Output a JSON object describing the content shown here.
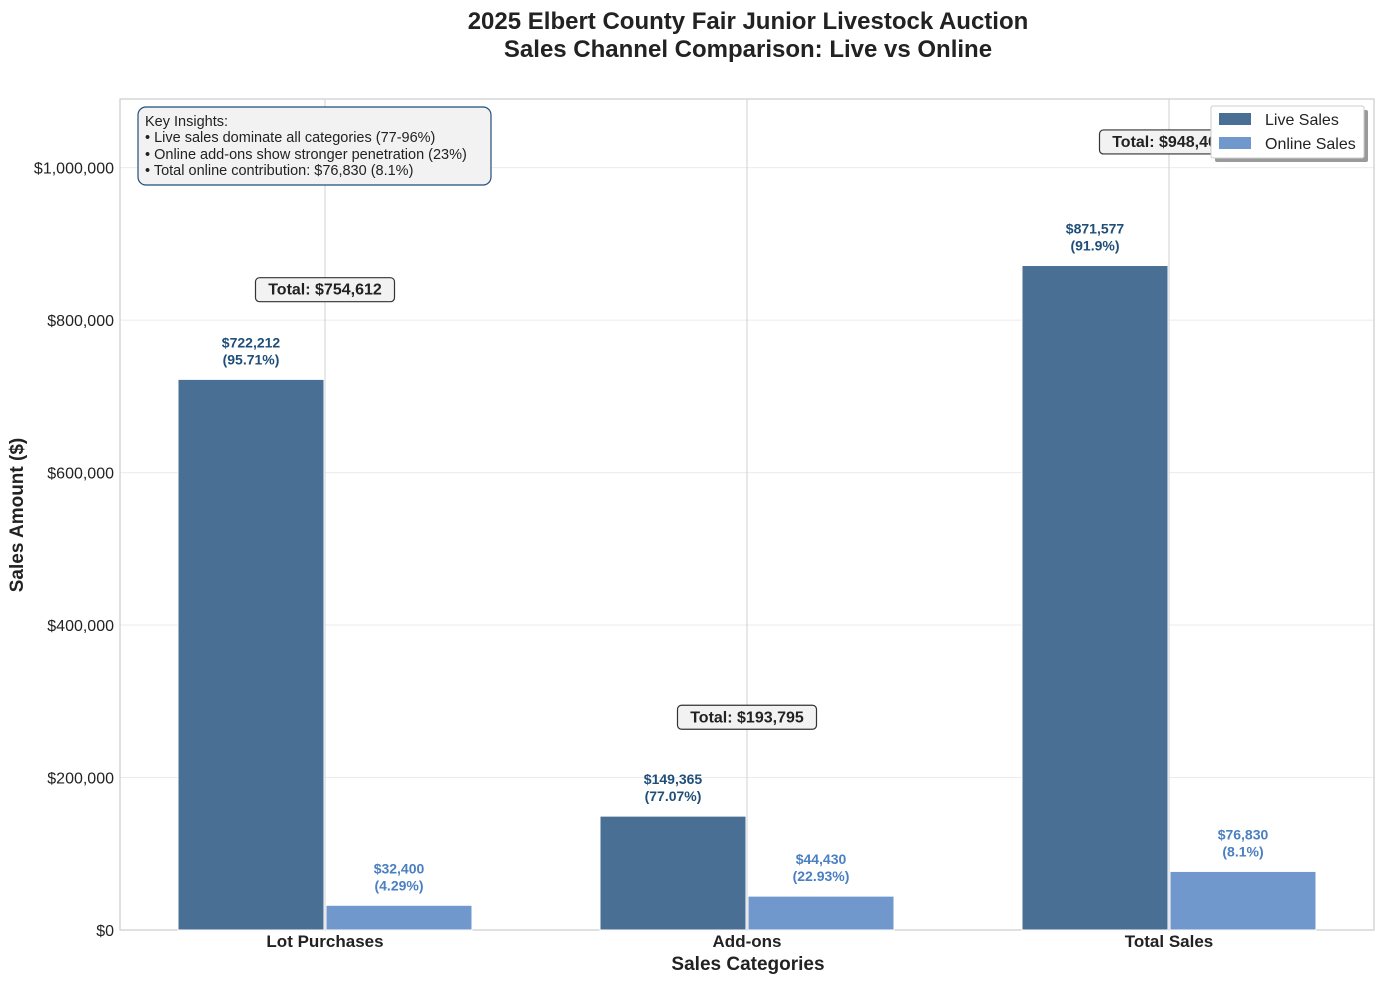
{
  "chart_data": {
    "type": "bar",
    "title": "2025 Elbert County Fair Junior Livestock Auction",
    "subtitle": "Sales Channel Comparison: Live vs Online",
    "xlabel": "Sales Categories",
    "ylabel": "Sales Amount ($)",
    "categories": [
      "Lot Purchases",
      "Add-ons",
      "Total Sales"
    ],
    "series": [
      {
        "name": "Live Sales",
        "color": "#1f4e79",
        "values": [
          722212,
          149365,
          871577
        ],
        "labels": [
          "$722,212",
          "$149,365",
          "$871,577"
        ],
        "percent_labels": [
          "(95.71%)",
          "(77.07%)",
          "(91.9%)"
        ]
      },
      {
        "name": "Online Sales",
        "color": "#4a7fc1",
        "values": [
          32400,
          44430,
          76830
        ],
        "labels": [
          "$32,400",
          "$44,430",
          "$76,830"
        ],
        "percent_labels": [
          "(4.29%)",
          "(22.93%)",
          "(8.1%)"
        ]
      }
    ],
    "totals": [
      754612,
      193795,
      948406
    ],
    "total_labels": [
      "Total: $754,612",
      "Total: $193,795",
      "Total: $948,406"
    ],
    "ylim": [
      0,
      1090000
    ],
    "yticks": [
      0,
      200000,
      400000,
      600000,
      800000,
      1000000
    ],
    "ytick_labels": [
      "$0",
      "$200,000",
      "$400,000",
      "$600,000",
      "$800,000",
      "$1,000,000"
    ],
    "grid": true,
    "legend_position": "top-right",
    "insights": {
      "heading": "Key Insights:",
      "items": [
        "• Live sales dominate all categories (77-96%)",
        "• Online add-ons show stronger penetration (23%)",
        "• Total online contribution: $76,830 (8.1%)"
      ]
    }
  }
}
